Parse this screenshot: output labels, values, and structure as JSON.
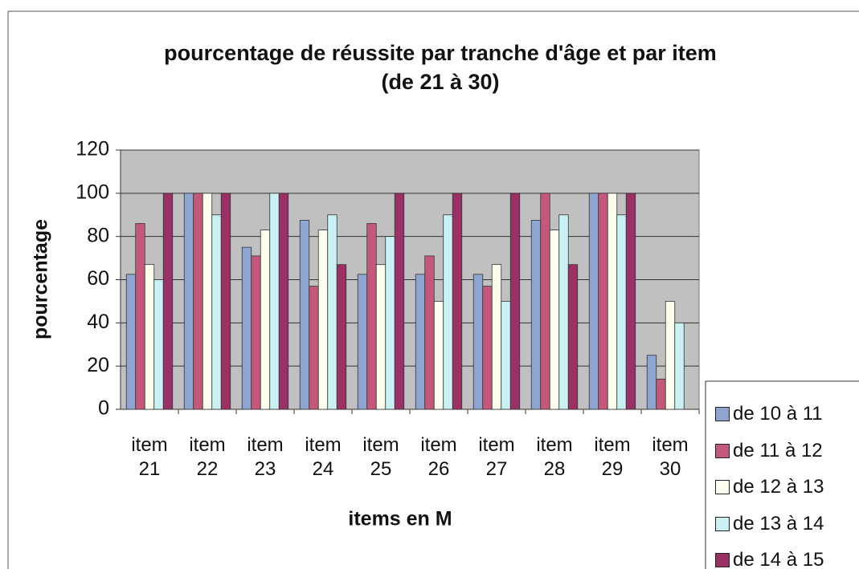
{
  "chart_data": {
    "type": "bar",
    "title": "pourcentage de réussite par tranche d'âge et par item",
    "subtitle": "(de 21 à 30)",
    "xlabel": "items en M",
    "ylabel": "pourcentage",
    "categories": [
      "item 21",
      "item 22",
      "item 23",
      "item 24",
      "item 25",
      "item 26",
      "item 27",
      "item 28",
      "item 29",
      "item 30"
    ],
    "series": [
      {
        "name": "de 10 à 11",
        "color": "#8ea6cf",
        "values": [
          62.5,
          100,
          75,
          87.5,
          62.5,
          62.5,
          62.5,
          87.5,
          100,
          25
        ]
      },
      {
        "name": "de 11 à 12",
        "color": "#c4587a",
        "values": [
          86,
          100,
          71,
          57,
          86,
          71,
          57,
          100,
          100,
          14
        ]
      },
      {
        "name": "de 12 à 13",
        "color": "#fffff0",
        "values": [
          67,
          100,
          83,
          83,
          67,
          50,
          67,
          83,
          100,
          50
        ]
      },
      {
        "name": "de 13 à 14",
        "color": "#c9f0f2",
        "values": [
          60,
          90,
          100,
          90,
          80,
          90,
          50,
          90,
          90,
          40
        ]
      },
      {
        "name": "de 14 à 15",
        "color": "#9a3064",
        "values": [
          100,
          100,
          100,
          67,
          100,
          100,
          100,
          67,
          100,
          0
        ]
      }
    ],
    "ylim": [
      0,
      120
    ],
    "yticks": [
      0,
      20,
      40,
      60,
      80,
      100,
      120
    ],
    "grid": true,
    "legend": "bottom-right"
  }
}
